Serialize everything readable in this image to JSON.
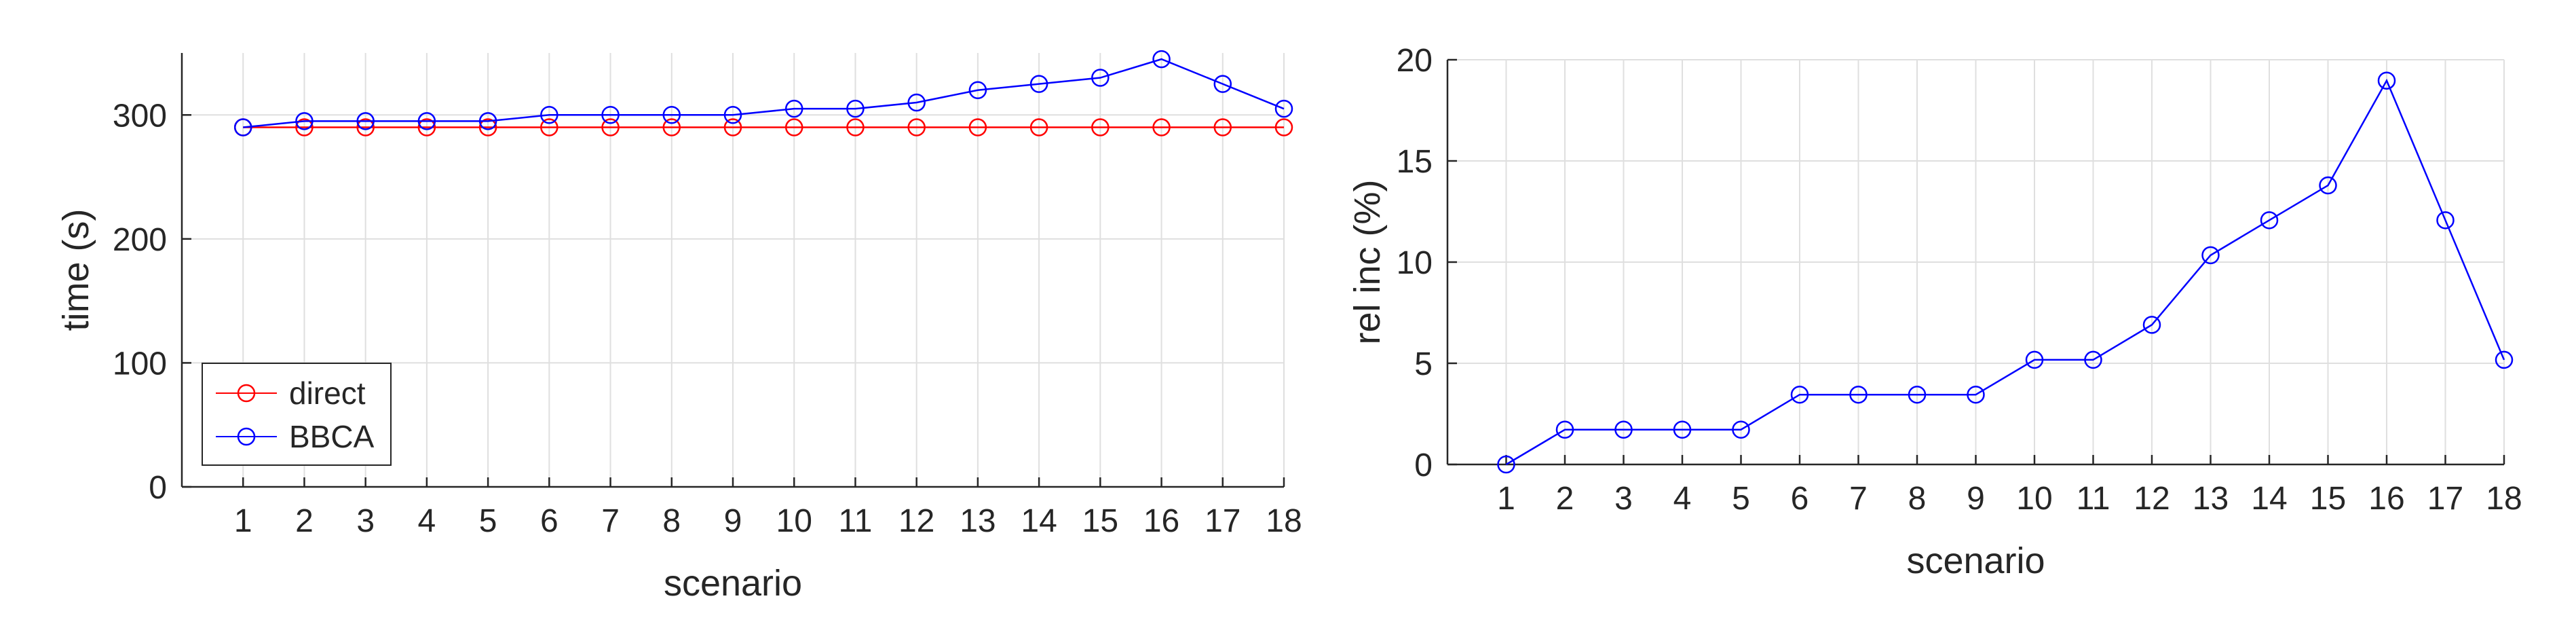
{
  "colors": {
    "direct": "#ff0000",
    "bbca": "#0000ff",
    "axis": "#262626",
    "grid": "#dfdfdf"
  },
  "chart_data": [
    {
      "type": "line",
      "xlabel": "scenario",
      "ylabel": "time (s)",
      "x": [
        1,
        2,
        3,
        4,
        5,
        6,
        7,
        8,
        9,
        10,
        11,
        12,
        13,
        14,
        15,
        16,
        17,
        18
      ],
      "xlim": [
        0,
        18
      ],
      "ylim": [
        0,
        350
      ],
      "yticks": [
        0,
        100,
        200,
        300
      ],
      "grid": true,
      "legend_position": "bottom-left",
      "series": [
        {
          "name": "direct",
          "color": "#ff0000",
          "marker": "circle",
          "values": [
            290,
            290,
            290,
            290,
            290,
            290,
            290,
            290,
            290,
            290,
            290,
            290,
            290,
            290,
            290,
            290,
            290,
            290
          ]
        },
        {
          "name": "BBCA",
          "color": "#0000ff",
          "marker": "circle",
          "values": [
            290,
            295,
            295,
            295,
            295,
            300,
            300,
            300,
            300,
            305,
            305,
            310,
            320,
            325,
            330,
            345,
            325,
            305
          ]
        }
      ]
    },
    {
      "type": "line",
      "xlabel": "scenario",
      "ylabel": "rel inc (%)",
      "x": [
        1,
        2,
        3,
        4,
        5,
        6,
        7,
        8,
        9,
        10,
        11,
        12,
        13,
        14,
        15,
        16,
        17,
        18
      ],
      "xlim": [
        0,
        18
      ],
      "ylim": [
        0,
        20
      ],
      "yticks": [
        0,
        5,
        10,
        15,
        20
      ],
      "grid": true,
      "series": [
        {
          "color": "#0000ff",
          "marker": "circle",
          "values": [
            0,
            1.72,
            1.72,
            1.72,
            1.72,
            3.45,
            3.45,
            3.45,
            3.45,
            5.17,
            5.17,
            6.9,
            10.34,
            12.07,
            13.79,
            18.97,
            12.07,
            5.17
          ]
        }
      ]
    }
  ]
}
